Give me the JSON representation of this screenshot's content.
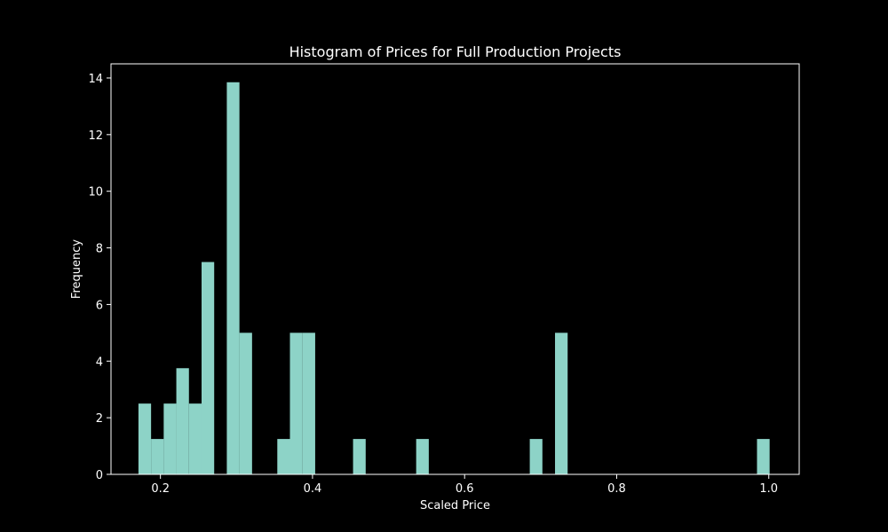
{
  "chart_data": {
    "type": "bar",
    "subtype": "histogram",
    "title": "Histogram of Prices for Full Production Projects",
    "xlabel": "Scaled Price",
    "ylabel": "Frequency",
    "xlim": [
      0.135,
      1.04
    ],
    "ylim": [
      0,
      14.5
    ],
    "xticks": [
      "0.2",
      "0.4",
      "0.6",
      "0.8",
      "1.0"
    ],
    "yticks": [
      "0",
      "2",
      "4",
      "6",
      "8",
      "10",
      "12",
      "14"
    ],
    "grid": false,
    "bin_width": 0.0166,
    "bin_start": 0.1711,
    "bins": [
      {
        "x": 0.1794,
        "value": 2.5
      },
      {
        "x": 0.196,
        "value": 1.25
      },
      {
        "x": 0.2126,
        "value": 2.5
      },
      {
        "x": 0.2292,
        "value": 3.75
      },
      {
        "x": 0.2458,
        "value": 2.5
      },
      {
        "x": 0.2624,
        "value": 7.5
      },
      {
        "x": 0.2956,
        "value": 13.85
      },
      {
        "x": 0.3122,
        "value": 5.0
      },
      {
        "x": 0.362,
        "value": 1.25
      },
      {
        "x": 0.3786,
        "value": 5.0
      },
      {
        "x": 0.3952,
        "value": 5.0
      },
      {
        "x": 0.4616,
        "value": 1.25
      },
      {
        "x": 0.5446,
        "value": 1.25
      },
      {
        "x": 0.694,
        "value": 1.25
      },
      {
        "x": 0.7272,
        "value": 5.0
      },
      {
        "x": 0.9928,
        "value": 1.25
      }
    ],
    "colors": {
      "bar": "#8dd3c7",
      "axis": "#ffffff",
      "background": "#000000"
    }
  }
}
